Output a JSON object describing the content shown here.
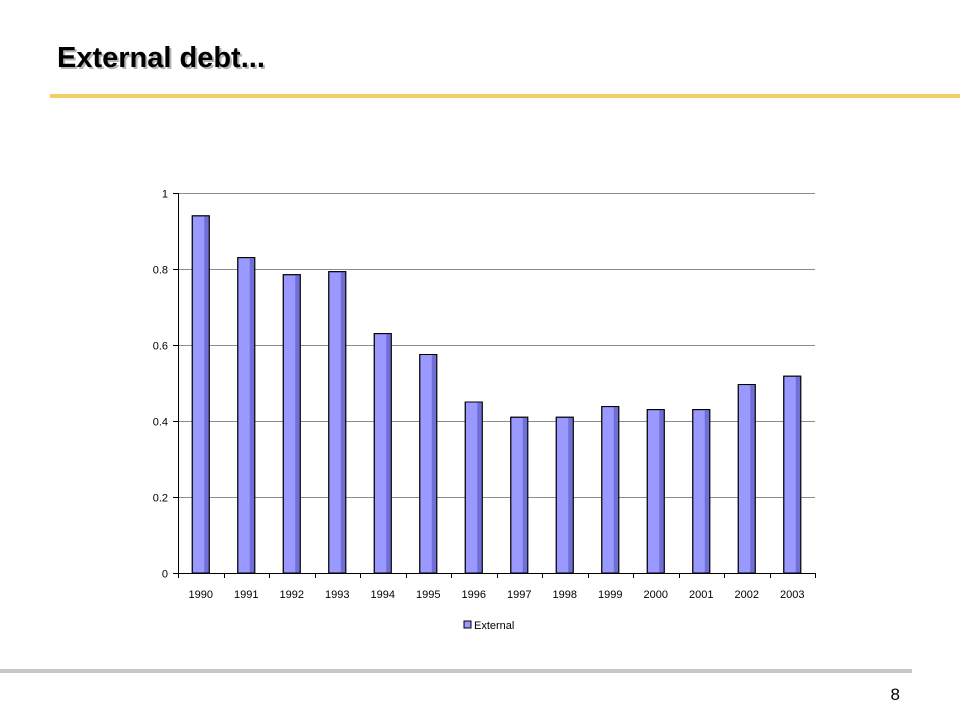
{
  "slide": {
    "title": "External debt...",
    "page_number": "8",
    "accent_color": "#f5cd66"
  },
  "chart_data": {
    "type": "bar",
    "categories": [
      "1990",
      "1991",
      "1992",
      "1993",
      "1994",
      "1995",
      "1996",
      "1997",
      "1998",
      "1999",
      "2000",
      "2001",
      "2002",
      "2003"
    ],
    "series": [
      {
        "name": "External",
        "color": "#9999ff",
        "values": [
          0.94,
          0.83,
          0.785,
          0.793,
          0.63,
          0.575,
          0.45,
          0.41,
          0.41,
          0.438,
          0.43,
          0.43,
          0.496,
          0.518
        ]
      }
    ],
    "ylim": [
      0,
      1
    ],
    "yticks": [
      0,
      0.2,
      0.4,
      0.6,
      0.8,
      1
    ],
    "grid": true,
    "legend": "bottom"
  }
}
